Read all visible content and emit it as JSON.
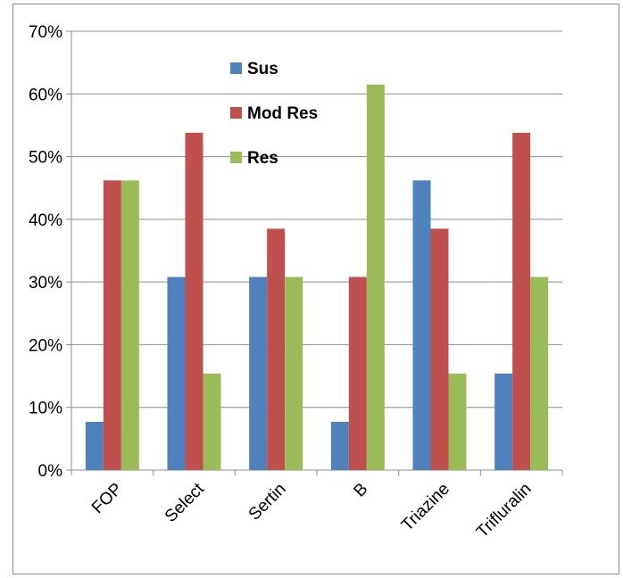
{
  "chart_data": {
    "type": "bar",
    "categories": [
      "FOP",
      "Select",
      "Sertin",
      "B",
      "Triazine",
      "Trifluralin"
    ],
    "series": [
      {
        "name": "Sus",
        "color": "#4f81bd",
        "values": [
          0.077,
          0.308,
          0.308,
          0.077,
          0.462,
          0.154
        ]
      },
      {
        "name": "Mod Res",
        "color": "#c0504d",
        "values": [
          0.462,
          0.538,
          0.385,
          0.308,
          0.385,
          0.538
        ]
      },
      {
        "name": "Res",
        "color": "#9bbb59",
        "values": [
          0.462,
          0.154,
          0.308,
          0.615,
          0.154,
          0.308
        ]
      }
    ],
    "ylim": [
      0,
      0.7
    ],
    "yticks": [
      0,
      0.1,
      0.2,
      0.3,
      0.4,
      0.5,
      0.6,
      0.7
    ],
    "ytick_labels": [
      "0%",
      "10%",
      "20%",
      "30%",
      "40%",
      "50%",
      "60%",
      "70%"
    ],
    "grid": true,
    "legend_position": "top-center",
    "title": "",
    "xlabel": "",
    "ylabel": ""
  }
}
